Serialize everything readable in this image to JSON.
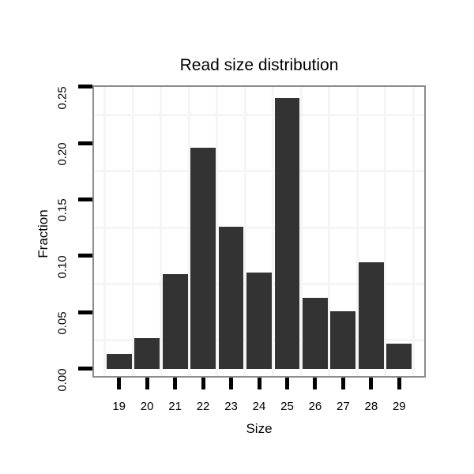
{
  "chart_data": {
    "type": "bar",
    "title": "Read size distribution",
    "xlabel": "Size",
    "ylabel": "Fraction",
    "categories": [
      "19",
      "20",
      "21",
      "22",
      "23",
      "24",
      "25",
      "26",
      "27",
      "28",
      "29"
    ],
    "x_values": [
      19,
      20,
      21,
      22,
      23,
      24,
      25,
      26,
      27,
      28,
      29
    ],
    "values": [
      0.013,
      0.027,
      0.084,
      0.196,
      0.126,
      0.085,
      0.24,
      0.063,
      0.051,
      0.094,
      0.022
    ],
    "y_tick_values": [
      0.0,
      0.05,
      0.1,
      0.15,
      0.2,
      0.25
    ],
    "y_tick_labels": [
      "0.00",
      "0.05",
      "0.10",
      "0.15",
      "0.20",
      "0.25"
    ],
    "xlim": [
      18.05,
      29.95
    ],
    "ylim": [
      -0.008,
      0.2512
    ],
    "bar_width_fraction": 0.9,
    "minor_grid_y_values": [
      0.025,
      0.075,
      0.125,
      0.175,
      0.225
    ],
    "minor_grid_x_offset": 0.5,
    "grid": "minor gridlines visible; major gridlines white (invisible on white panel)",
    "legend": "none",
    "colors": {
      "bar_fill": "#333333",
      "panel_background": "#ffffff",
      "page_background": "#ffffff",
      "minor_gridline": "#f5f5f5",
      "major_gridline": "#ffffff",
      "panel_border": "#8c8c8c",
      "tick_mark": "#000000",
      "text": "#000000"
    }
  }
}
